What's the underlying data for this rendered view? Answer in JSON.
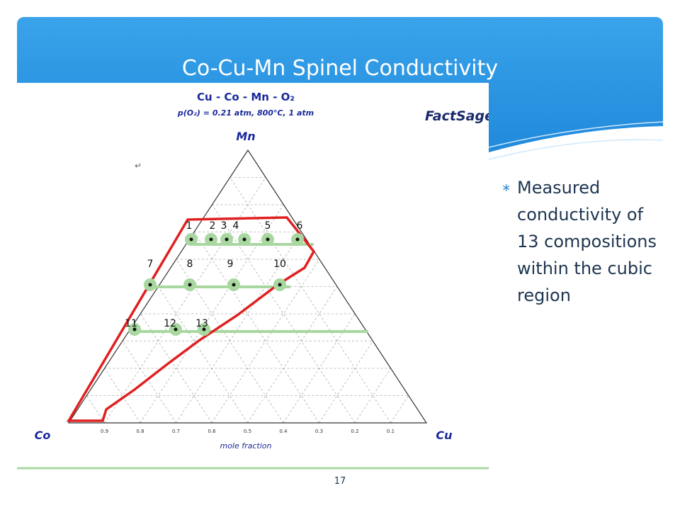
{
  "slide": {
    "title": "Co-Cu-Mn Spinel  Conductivity",
    "page_number": "17",
    "bullets": [
      "Measured conductivity of 13 compositions within the cubic region"
    ]
  },
  "figure": {
    "title": "Cu - Co - Mn - O₂",
    "conditions": "p(O₂) = 0.21 atm, 800°C, 1 atm",
    "logo": "FactSage",
    "vertices": {
      "top": "Mn",
      "left": "Co",
      "right": "Cu"
    },
    "axis_label": "mole fraction",
    "ticks": [
      "0.9",
      "0.8",
      "0.7",
      "0.6",
      "0.5",
      "0.4",
      "0.3",
      "0.2",
      "0.1"
    ],
    "points": [
      "1",
      "2",
      "3",
      "4",
      "5",
      "6",
      "7",
      "8",
      "9",
      "10",
      "11",
      "12",
      "13"
    ]
  }
}
